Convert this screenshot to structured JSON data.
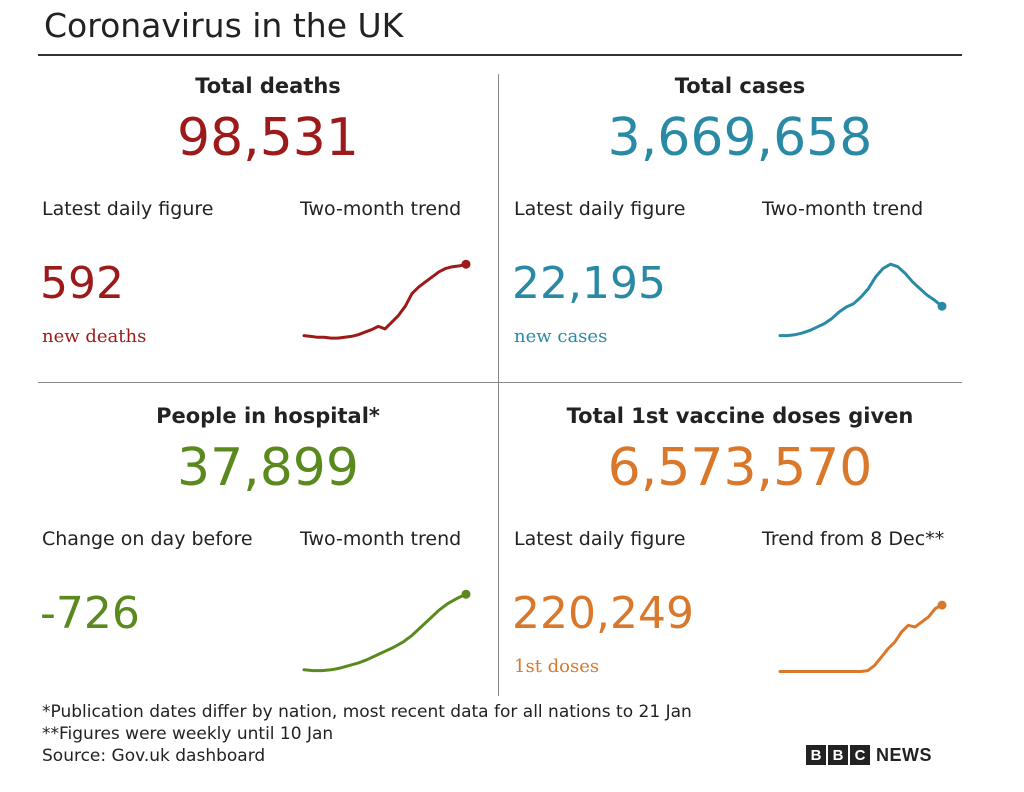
{
  "title": "Coronavirus in the UK",
  "colors": {
    "deaths": "#9c1a1a",
    "cases": "#2a8aa6",
    "hospital": "#5a8a1e",
    "vaccine": "#d9772a"
  },
  "panels": [
    {
      "id": "deaths",
      "heading": "Total deaths",
      "total": "98,531",
      "left_label": "Latest daily figure",
      "right_label": "Two-month trend",
      "figure": "592",
      "unit": "new deaths",
      "color": "#9c1a1a"
    },
    {
      "id": "cases",
      "heading": "Total cases",
      "total": "3,669,658",
      "left_label": "Latest daily figure",
      "right_label": "Two-month trend",
      "figure": "22,195",
      "unit": "new cases",
      "color": "#2a8aa6"
    },
    {
      "id": "hospital",
      "heading": "People in hospital*",
      "total": "37,899",
      "left_label": "Change on day before",
      "right_label": "Two-month trend",
      "figure": "-726",
      "unit": "",
      "color": "#5a8a1e"
    },
    {
      "id": "vaccine",
      "heading": "Total 1st vaccine doses given",
      "total": "6,573,570",
      "left_label": "Latest daily figure",
      "right_label": "Trend from 8 Dec**",
      "figure": "220,249",
      "unit": "1st doses",
      "color": "#d9772a"
    }
  ],
  "chart_data": [
    {
      "type": "line",
      "title": "Two-month trend",
      "series": [
        {
          "values": [
            0.1,
            0.09,
            0.08,
            0.08,
            0.07,
            0.07,
            0.08,
            0.09,
            0.11,
            0.14,
            0.17,
            0.21,
            0.18,
            0.26,
            0.34,
            0.45,
            0.6,
            0.68,
            0.74,
            0.8,
            0.86,
            0.9,
            0.92,
            0.93,
            0.95
          ]
        }
      ]
    },
    {
      "type": "line",
      "title": "Two-month trend",
      "series": [
        {
          "values": [
            0.1,
            0.1,
            0.11,
            0.13,
            0.16,
            0.2,
            0.24,
            0.3,
            0.38,
            0.44,
            0.48,
            0.56,
            0.66,
            0.8,
            0.9,
            0.95,
            0.92,
            0.84,
            0.74,
            0.66,
            0.58,
            0.52,
            0.45
          ]
        }
      ]
    },
    {
      "type": "line",
      "title": "Two-month trend",
      "series": [
        {
          "values": [
            0.05,
            0.04,
            0.04,
            0.05,
            0.07,
            0.1,
            0.13,
            0.17,
            0.22,
            0.27,
            0.32,
            0.38,
            0.46,
            0.56,
            0.66,
            0.76,
            0.84,
            0.9,
            0.95
          ]
        }
      ]
    },
    {
      "type": "line",
      "title": "Trend from 8 Dec**",
      "series": [
        {
          "values": [
            0.03,
            0.03,
            0.03,
            0.03,
            0.03,
            0.03,
            0.03,
            0.03,
            0.03,
            0.03,
            0.03,
            0.03,
            0.03,
            0.04,
            0.1,
            0.2,
            0.3,
            0.38,
            0.5,
            0.58,
            0.56,
            0.62,
            0.68,
            0.78,
            0.82
          ]
        }
      ]
    }
  ],
  "footnotes": [
    "*Publication dates differ by nation, most recent data for all nations to 21 Jan",
    "**Figures were weekly until 10 Jan",
    "Source: Gov.uk dashboard"
  ],
  "brand": {
    "letters": [
      "B",
      "B",
      "C"
    ],
    "news": "NEWS"
  }
}
